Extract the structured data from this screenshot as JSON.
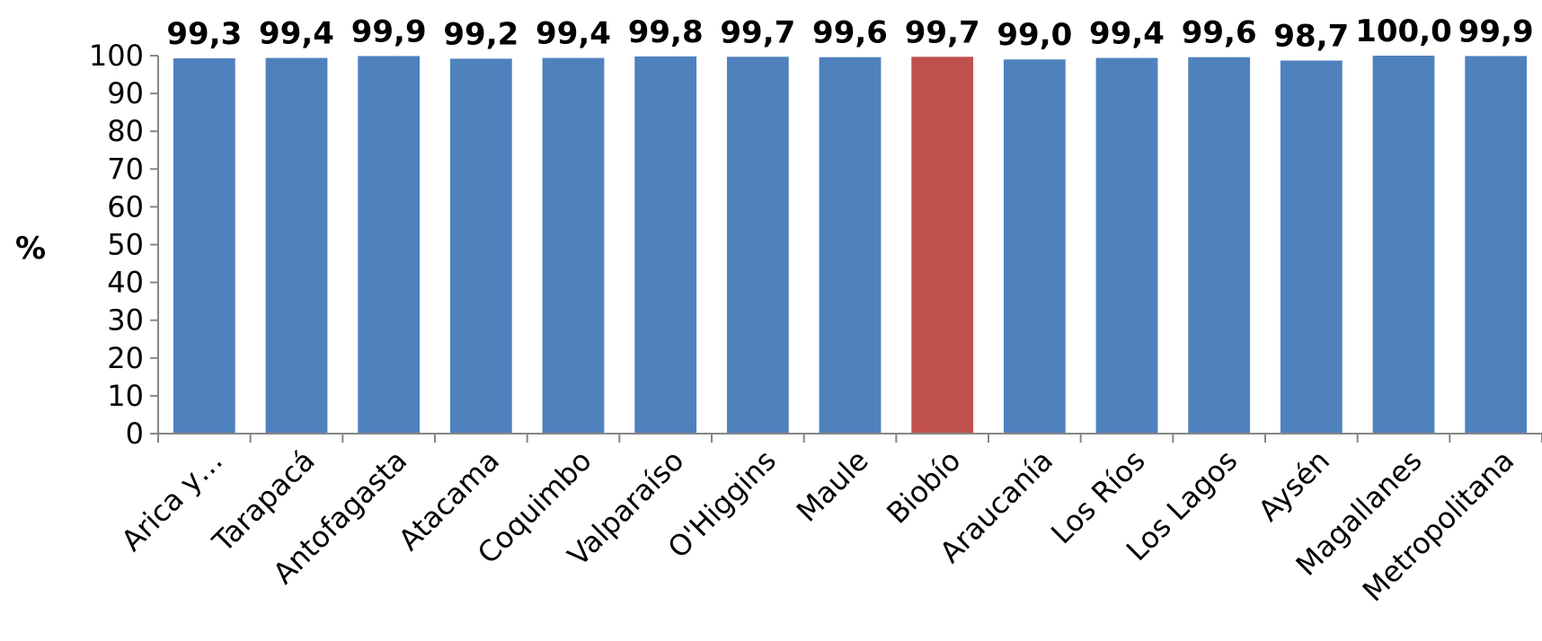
{
  "chart_data": {
    "type": "bar",
    "ylabel": "%",
    "xlabel": "",
    "ylim": [
      0,
      100
    ],
    "yticks": [
      0,
      10,
      20,
      30,
      40,
      50,
      60,
      70,
      80,
      90,
      100
    ],
    "grid": false,
    "categories": [
      "Arica y…",
      "Tarapacá",
      "Antofagasta",
      "Atacama",
      "Coquimbo",
      "Valparaíso",
      "O'Higgins",
      "Maule",
      "Biobío",
      "Araucanía",
      "Los Ríos",
      "Los Lagos",
      "Aysén",
      "Magallanes",
      "Metropolitana"
    ],
    "values": [
      99.3,
      99.4,
      99.9,
      99.2,
      99.4,
      99.8,
      99.7,
      99.6,
      99.7,
      99.0,
      99.4,
      99.6,
      98.7,
      100.0,
      99.9
    ],
    "value_labels": [
      "99,3",
      "99,4",
      "99,9",
      "99,2",
      "99,4",
      "99,8",
      "99,7",
      "99,6",
      "99,7",
      "99,0",
      "99,4",
      "99,6",
      "98,7",
      "100,0",
      "99,9"
    ],
    "colors": {
      "default": "#4F81BD",
      "highlight": "#C0504D",
      "axis": "#868686"
    },
    "highlight_index": 8
  }
}
